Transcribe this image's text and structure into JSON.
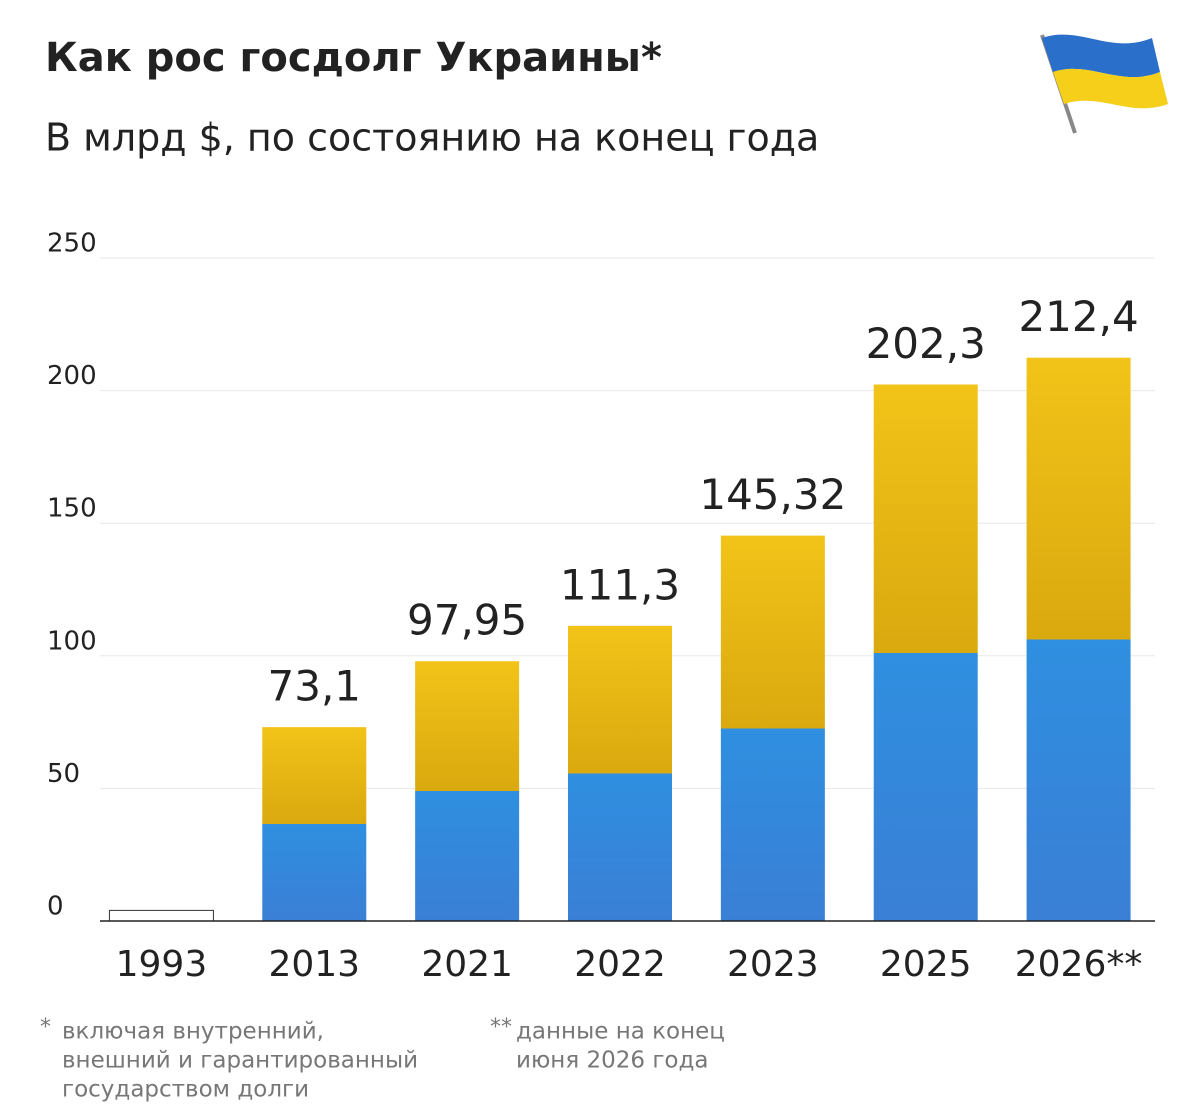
{
  "chart_data": {
    "type": "bar",
    "title": "Как рос госдолг Украины*",
    "subtitle": "В млрд $, по состоянию на конец года",
    "categories": [
      "1993",
      "2013",
      "2021",
      "2022",
      "2023",
      "2025",
      "2026**"
    ],
    "values": [
      4,
      73.1,
      97.95,
      111.3,
      145.32,
      202.3,
      212.4
    ],
    "value_labels": [
      null,
      "73,1",
      "97,95",
      "111,3",
      "145,32",
      "202,3",
      "212,4"
    ],
    "colors": [
      "#f2c318",
      "#2f8fe0"
    ],
    "ylim": [
      0,
      250
    ],
    "yticks": [
      0,
      50,
      100,
      150,
      200,
      250
    ],
    "grid": true,
    "footnotes": [
      {
        "marker": "*",
        "lines": [
          "включая внутренний,",
          "внешний и гарантированный",
          "государством долги"
        ]
      },
      {
        "marker": "**",
        "lines": [
          "данные на конец",
          "июня 2026 года"
        ]
      }
    ]
  }
}
